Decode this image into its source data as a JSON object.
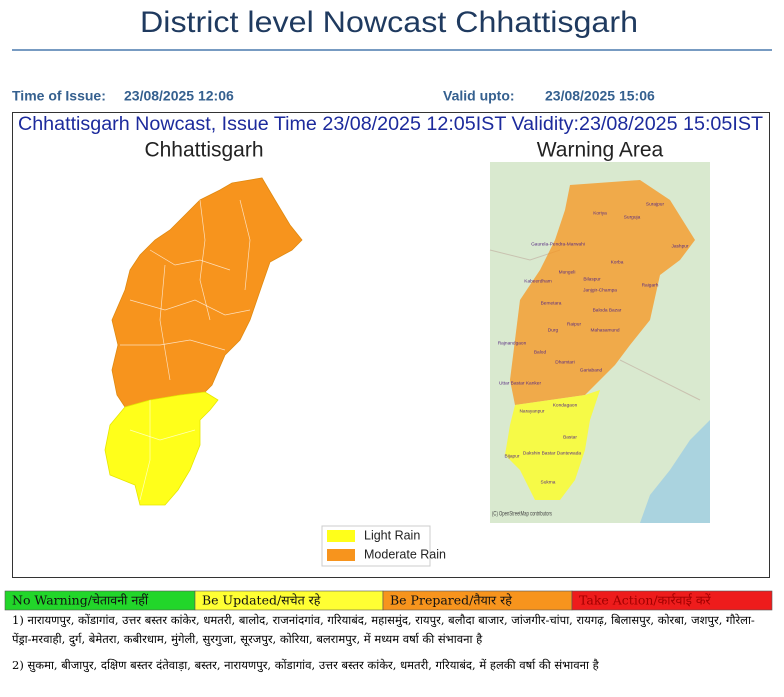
{
  "header": {
    "title": "District level Nowcast Chhattisgarh",
    "issue_label": "Time of Issue:",
    "issue_time": "23/08/2025 12:06",
    "valid_label": "Valid upto:",
    "valid_time": "23/08/2025 15:06"
  },
  "panel": {
    "heading": "Chhattisgarh Nowcast, Issue Time 23/08/2025 12:05IST  Validity:23/08/2025 15:05IST",
    "left_map_title": "Chhattisgarh",
    "right_map_title": "Warning Area",
    "map_labels": [
      "Surajpur",
      "Koriya",
      "Surguja",
      "Jashpur",
      "Gaurela-Pendra-Marwahi",
      "Korba",
      "Mungeli",
      "Bilaspur",
      "Kabeerdham",
      "Raigarh",
      "Janjgir-Champa",
      "Bemetara",
      "Baloda Bazar",
      "Raipur",
      "Durg",
      "Mahasamund",
      "Rajnandgaon",
      "Balod",
      "Dhamtari",
      "Gariaband",
      "Uttar Bastar Kanker",
      "Narayanpur",
      "Kondagaon",
      "Bastar",
      "Bijapur",
      "Dakshin Bastar Dantewada",
      "Sukma"
    ],
    "attribution": "(C) OpenStreetMap contributors",
    "legend": [
      {
        "label": "Light Rain",
        "color": "#ffff1a"
      },
      {
        "label": "Moderate Rain",
        "color": "#f7941d"
      }
    ]
  },
  "warning_scale": [
    {
      "label": "No Warning/चेतावनी नहीं",
      "color": "#22d62a"
    },
    {
      "label": "Be Updated/सचेत रहे",
      "color": "#ffff33"
    },
    {
      "label": "Be Prepared/तैयार रहे",
      "color": "#f7941d"
    },
    {
      "label": "Take Action/कार्रवाई करें",
      "color": "#ee1c1c"
    }
  ],
  "forecast": [
    "1) नारायणपुर, कोंडागांव, उत्तर बस्तर कांकेर, धमतरी, बालोद, राजनांदगांव, गरियाबंद, महासमुंद, रायपुर, बलौदा बाजार, जांजगीर-चांपा, रायगढ़, बिलासपुर, कोरबा, जशपुर, गौरेला-पेंड्रा-मरवाही, दुर्ग, बेमेतरा, कबीरधाम, मुंगेली, सुरगुजा, सूरजपुर, कोरिया, बलरामपुर,  में मध्यम वर्षा की संभावना  है",
    "2) सुकमा, बीजापुर, दक्षिण बस्तर दंतेवाड़ा, बस्तर, नारायणपुर, कोंडागांव, उत्तर बस्तर कांकेर, धमतरी, गरियाबंद,  में हलकी वर्षा की संभावना  है"
  ]
}
